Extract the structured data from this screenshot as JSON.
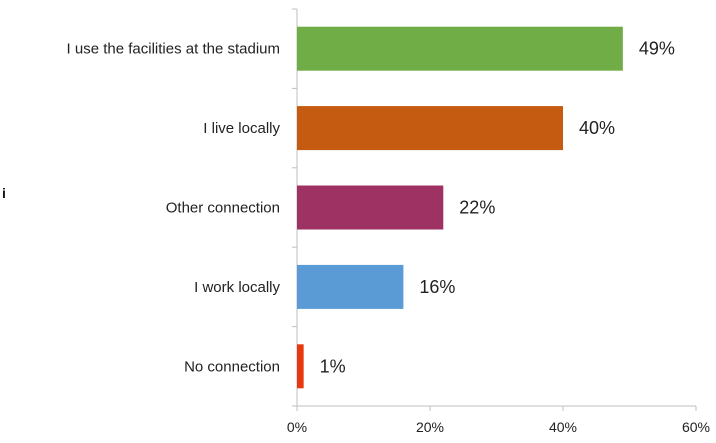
{
  "chart_data": {
    "type": "bar",
    "orientation": "horizontal",
    "categories": [
      "I use the facilities at the stadium",
      "I live locally",
      "Other connection",
      "I work locally",
      "No connection"
    ],
    "values": [
      49,
      40,
      22,
      16,
      1
    ],
    "value_labels": [
      "49%",
      "40%",
      "22%",
      "16%",
      "1%"
    ],
    "bar_colors": [
      "#70AD47",
      "#C55A11",
      "#9E3263",
      "#5B9BD5",
      "#E8380D"
    ],
    "xlim": [
      0,
      60
    ],
    "x_ticks": [
      0,
      20,
      40,
      60
    ],
    "x_tick_labels": [
      "0%",
      "20%",
      "40%",
      "60%"
    ],
    "grid": false,
    "legend": "none",
    "title": "",
    "xlabel": "",
    "ylabel": ""
  },
  "left_fragment": "i"
}
